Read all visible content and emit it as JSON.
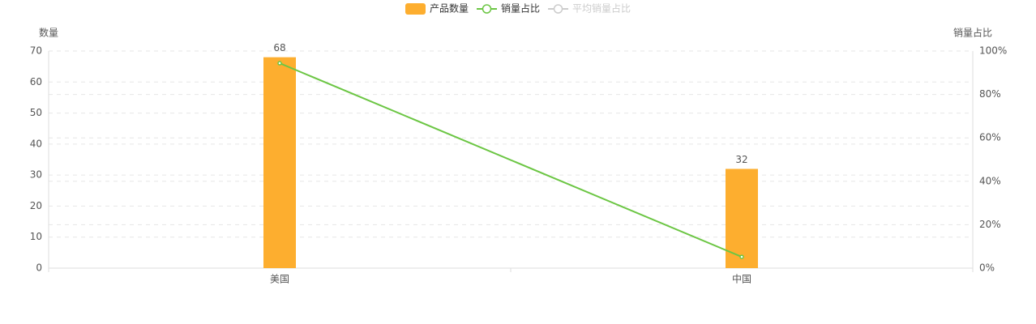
{
  "chart_data": {
    "type": "bar_line",
    "y_axis_name": "数量",
    "y2_axis_name": "销量占比",
    "categories": [
      "美国",
      "中国"
    ],
    "series": [
      {
        "name": "产品数量",
        "type": "bar",
        "color": "#fdae2f",
        "values": [
          68,
          32
        ]
      },
      {
        "name": "销量占比",
        "type": "line",
        "axis": "y2",
        "color": "#6cc644",
        "values": [
          94.4,
          5.2
        ]
      },
      {
        "name": "平均销量占比",
        "type": "line",
        "axis": "y2",
        "color": "#cccccc",
        "hidden": true,
        "values": [
          null,
          null
        ]
      }
    ],
    "ylim": [
      0,
      70
    ],
    "yticks": [
      0,
      10,
      20,
      30,
      40,
      50,
      60,
      70
    ],
    "y2lim": [
      0,
      100
    ],
    "y2ticks": [
      {
        "value": 0,
        "label": "0%"
      },
      {
        "value": 20,
        "label": "20%"
      },
      {
        "value": 40,
        "label": "40%"
      },
      {
        "value": 60,
        "label": "60%"
      },
      {
        "value": 80,
        "label": "80%"
      },
      {
        "value": 100,
        "label": "100%"
      }
    ],
    "grid": true
  }
}
